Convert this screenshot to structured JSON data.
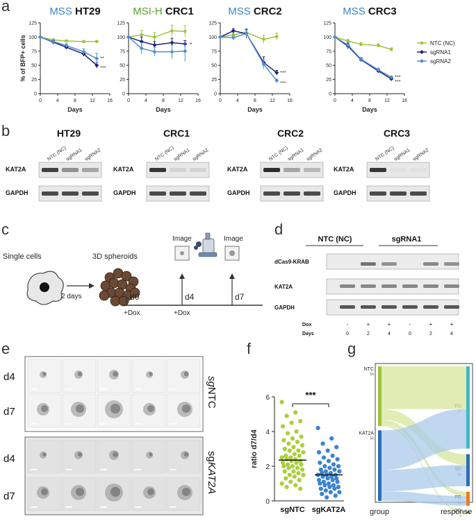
{
  "panels": {
    "a": "a",
    "b": "b",
    "c": "c",
    "d": "d",
    "e": "e",
    "f": "f",
    "g": "g"
  },
  "colors": {
    "ntc": "#9ec43a",
    "sgrna1": "#1f1f7a",
    "sgrna2": "#4f8fd0",
    "mss": "#3a86c8",
    "msih": "#5aa02c",
    "dot_ntc": "#a9cf3b",
    "dot_kat": "#3c82d0",
    "sankey_ntc": "#d6e59a",
    "sankey_kat": "#a9cbea",
    "pd": "#3fb9c6",
    "sd": "#2e6fb5",
    "pr": "#ef7a1a",
    "cr": "#4caf50"
  },
  "panel_a": {
    "ylabel": "% of BFP+ cells",
    "xlabel": "Days",
    "legend": [
      "NTC (NC)",
      "sgRNA1",
      "sgRNA2"
    ]
  },
  "chart_data": [
    {
      "type": "line",
      "title_prefix": "MSS",
      "title": "HT29",
      "xlabel": "Days",
      "ylabel": "% of BFP+ cells",
      "xlim": [
        0,
        16
      ],
      "ylim": [
        0,
        125
      ],
      "xticks": [
        "0",
        "4",
        "8",
        "12",
        "16"
      ],
      "yticks": [
        "0",
        "25",
        "50",
        "75",
        "100",
        "125"
      ],
      "x": [
        0,
        3,
        6,
        10,
        13
      ],
      "series": [
        {
          "name": "NTC (NC)",
          "values": [
            100,
            95,
            93,
            92,
            92
          ],
          "err": [
            0,
            2,
            2,
            2,
            2
          ]
        },
        {
          "name": "sgRNA1",
          "values": [
            100,
            91,
            82,
            70,
            50
          ],
          "err": [
            0,
            3,
            3,
            4,
            5
          ]
        },
        {
          "name": "sgRNA2",
          "values": [
            100,
            92,
            85,
            74,
            62
          ],
          "err": [
            0,
            3,
            3,
            5,
            9
          ]
        }
      ],
      "significance": [
        "**",
        "***"
      ]
    },
    {
      "type": "line",
      "title_prefix": "MSI-H",
      "title": "CRC1",
      "xlabel": "Days",
      "ylabel": "",
      "xlim": [
        0,
        16
      ],
      "ylim": [
        0,
        125
      ],
      "xticks": [
        "0",
        "4",
        "8",
        "12",
        "16"
      ],
      "yticks": [
        "0",
        "25",
        "50",
        "75",
        "100",
        "125"
      ],
      "x": [
        0,
        3,
        6,
        10,
        13
      ],
      "series": [
        {
          "name": "NTC (NC)",
          "values": [
            100,
            104,
            100,
            111,
            110
          ],
          "err": [
            0,
            8,
            8,
            10,
            10
          ]
        },
        {
          "name": "sgRNA1",
          "values": [
            100,
            92,
            86,
            90,
            88
          ],
          "err": [
            0,
            8,
            6,
            8,
            6
          ]
        },
        {
          "name": "sgRNA2",
          "values": [
            100,
            80,
            74,
            74,
            75
          ],
          "err": [
            0,
            10,
            8,
            12,
            18
          ]
        }
      ],
      "significance": [
        "*"
      ]
    },
    {
      "type": "line",
      "title_prefix": "MSS",
      "title": "CRC2",
      "xlabel": "Days",
      "ylabel": "",
      "xlim": [
        0,
        16
      ],
      "ylim": [
        0,
        125
      ],
      "xticks": [
        "0",
        "4",
        "8",
        "12",
        "16"
      ],
      "yticks": [
        "0",
        "25",
        "50",
        "75",
        "100",
        "125"
      ],
      "x": [
        0,
        3,
        6,
        10,
        13
      ],
      "series": [
        {
          "name": "NTC (NC)",
          "values": [
            100,
            104,
            108,
            96,
            101
          ],
          "err": [
            0,
            4,
            5,
            7,
            6
          ]
        },
        {
          "name": "sgRNA1",
          "values": [
            100,
            111,
            106,
            55,
            37
          ],
          "err": [
            0,
            4,
            8,
            10,
            4
          ]
        },
        {
          "name": "sgRNA2",
          "values": [
            100,
            99,
            106,
            52,
            23
          ],
          "err": [
            0,
            4,
            6,
            8,
            3
          ]
        }
      ],
      "significance": [
        "***",
        "***"
      ]
    },
    {
      "type": "line",
      "title_prefix": "MSS",
      "title": "CRC3",
      "xlabel": "Days",
      "ylabel": "",
      "xlim": [
        0,
        16
      ],
      "ylim": [
        0,
        125
      ],
      "xticks": [
        "0",
        "4",
        "8",
        "12",
        "16"
      ],
      "yticks": [
        "0",
        "25",
        "50",
        "75",
        "100",
        "125"
      ],
      "x": [
        0,
        3,
        6,
        10,
        13
      ],
      "series": [
        {
          "name": "NTC (NC)",
          "values": [
            100,
            93,
            87,
            85,
            78
          ],
          "err": [
            0,
            3,
            3,
            3,
            3
          ]
        },
        {
          "name": "sgRNA1",
          "values": [
            100,
            84,
            60,
            40,
            26
          ],
          "err": [
            0,
            5,
            3,
            3,
            2
          ]
        },
        {
          "name": "sgRNA2",
          "values": [
            100,
            86,
            61,
            42,
            29
          ],
          "err": [
            0,
            5,
            3,
            3,
            2
          ]
        }
      ],
      "significance": [
        "***",
        "***"
      ]
    },
    {
      "type": "scatter",
      "title": "",
      "xlabel": "",
      "ylabel": "ratio d7/d4",
      "ylim": [
        0,
        6
      ],
      "yticks": [
        "0",
        "2",
        "4",
        "6"
      ],
      "categories": [
        "sgNTC",
        "sgKAT2A"
      ],
      "medians": [
        2.35,
        1.5
      ],
      "significance": "***",
      "series": [
        {
          "name": "sgNTC",
          "values": [
            5.7,
            5.1,
            4.9,
            4.6,
            4.5,
            4.3,
            4.0,
            3.9,
            3.7,
            3.6,
            3.5,
            3.4,
            3.3,
            3.2,
            3.1,
            3.0,
            2.9,
            2.9,
            2.8,
            2.7,
            2.6,
            2.6,
            2.5,
            2.5,
            2.4,
            2.4,
            2.3,
            2.3,
            2.2,
            2.2,
            2.1,
            2.1,
            2.0,
            2.0,
            1.9,
            1.9,
            1.8,
            1.7,
            1.7,
            1.6,
            1.5,
            1.5,
            1.4,
            1.3,
            1.2,
            1.1,
            1.0,
            0.9,
            0.8,
            0.7
          ]
        },
        {
          "name": "sgKAT2A",
          "values": [
            4.2,
            3.6,
            3.3,
            3.1,
            2.9,
            2.8,
            2.6,
            2.5,
            2.4,
            2.3,
            2.2,
            2.1,
            2.0,
            2.0,
            1.9,
            1.8,
            1.8,
            1.7,
            1.7,
            1.6,
            1.6,
            1.5,
            1.5,
            1.5,
            1.4,
            1.4,
            1.3,
            1.3,
            1.2,
            1.2,
            1.1,
            1.1,
            1.0,
            1.0,
            0.9,
            0.9,
            0.8,
            0.8,
            0.7,
            0.7,
            0.6,
            0.5,
            0.5,
            0.4,
            0.3,
            0.2
          ]
        }
      ]
    },
    {
      "type": "sankey",
      "xlabel_left": "group",
      "xlabel_right": "response",
      "sources": [
        {
          "name": "NTC",
          "value": 56
        },
        {
          "name": "KAT2A",
          "value": 66
        }
      ],
      "targets": [
        {
          "name": "PD",
          "value": 77
        },
        {
          "name": "SD",
          "value": 30
        },
        {
          "name": "PR",
          "value": 13
        },
        {
          "name": "CR",
          "value": 2
        }
      ]
    }
  ],
  "panel_b": {
    "blots": [
      {
        "title": "HT29",
        "lanes": [
          "NTC (NC)",
          "sgRNA1",
          "sgRNA2"
        ],
        "rows": [
          "KAT2A",
          "GAPDH"
        ]
      },
      {
        "title": "CRC1",
        "lanes": [
          "NTC (NC)",
          "sgRNA1",
          "sgRNA2"
        ],
        "rows": [
          "KAT2A",
          "GAPDH"
        ]
      },
      {
        "title": "CRC2",
        "lanes": [
          "NTC (NC)",
          "sgRNA1",
          "sgRNA2"
        ],
        "rows": [
          "KAT2A",
          "GAPDH"
        ]
      },
      {
        "title": "CRC3",
        "lanes": [
          "NTC (NC)",
          "sgRNA1",
          "sgRNA2"
        ],
        "rows": [
          "KAT2A",
          "GAPDH"
        ]
      }
    ]
  },
  "panel_c": {
    "single_cells": "Single cells",
    "spheroids": "3D spheroids",
    "two_days": "2 days",
    "image1": "Image",
    "image2": "Image",
    "d0": "d0",
    "d4": "d4",
    "d7": "d7",
    "dox1": "+Dox",
    "dox2": "+Dox"
  },
  "panel_d": {
    "group1": "NTC (NC)",
    "group2": "sgRNA1",
    "rows": [
      "dCas9-KRAB",
      "KAT2A",
      "GAPDH"
    ],
    "dox_label": "Dox",
    "days_label": "Days",
    "dox": [
      "-",
      "+",
      "+",
      "-",
      "+",
      "+"
    ],
    "days": [
      "0",
      "2",
      "4",
      "0",
      "2",
      "4"
    ]
  },
  "panel_e": {
    "group1": "sgNTC",
    "group2": "sgKAT2A",
    "group1_prefix": "sg",
    "group1_suffix": "NTC",
    "group2_prefix": "sg",
    "group2_suffix": "KAT2A",
    "rows": [
      "d4",
      "d7",
      "d4",
      "d7"
    ]
  }
}
